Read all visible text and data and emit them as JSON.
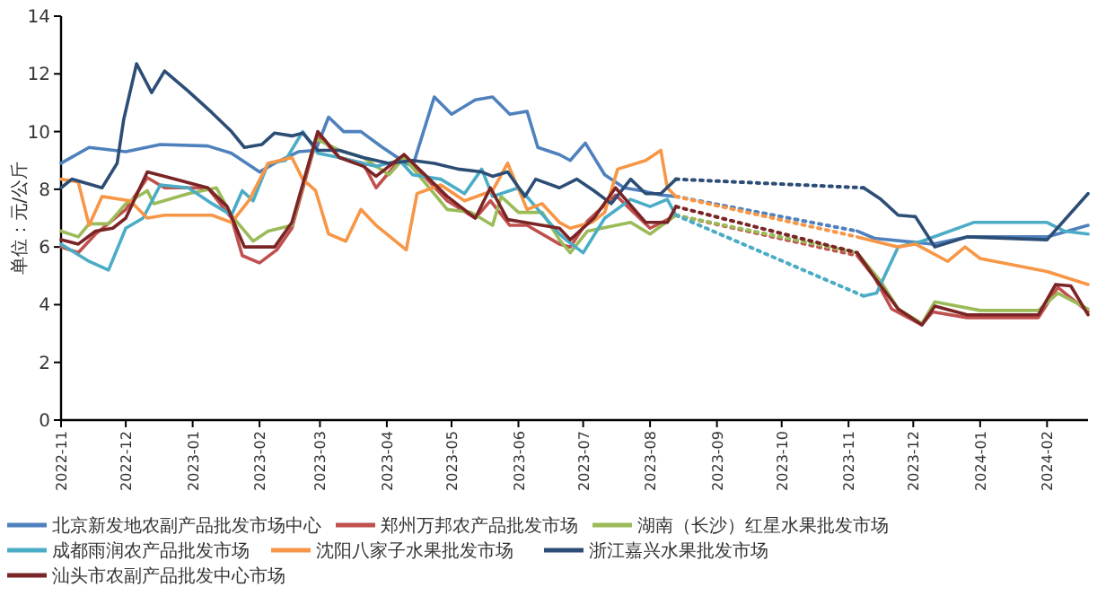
{
  "chart_data": {
    "type": "line",
    "ylabel": "单位：元/公斤",
    "legend": "bottom",
    "xlim": [
      "2022-11-01",
      "2024-02-20"
    ],
    "xticks": [
      "2022-11",
      "2022-12",
      "2023-01",
      "2023-02",
      "2023-03",
      "2023-04",
      "2023-05",
      "2023-06",
      "2023-07",
      "2023-08",
      "2023-09",
      "2023-10",
      "2023-11",
      "2023-12",
      "2024-01",
      "2024-02"
    ],
    "ylim": [
      0,
      14
    ],
    "yticks": [
      0,
      2,
      4,
      6,
      8,
      10,
      12,
      14
    ],
    "series": [
      {
        "name": "北京新发地农副产品批发市场中心",
        "color": "#4f81bd",
        "x": [
          "2022-11-01",
          "2022-11-14",
          "2022-12-01",
          "2022-12-17",
          "2023-01-08",
          "2023-01-19",
          "2023-02-01",
          "2023-02-08",
          "2023-02-19",
          "2023-02-27",
          "2023-03-05",
          "2023-03-12",
          "2023-03-20",
          "2023-03-30",
          "2023-04-10",
          "2023-04-13",
          "2023-04-23",
          "2023-05-01",
          "2023-05-12",
          "2023-05-20",
          "2023-05-28",
          "2023-06-05",
          "2023-06-10",
          "2023-06-20",
          "2023-06-25",
          "2023-07-02",
          "2023-07-11",
          "2023-07-20",
          "2023-07-28",
          "2023-08-06",
          "2023-08-13"
        ],
        "values": [
          8.9,
          9.45,
          9.3,
          9.55,
          9.5,
          9.25,
          8.6,
          8.9,
          9.3,
          9.35,
          10.5,
          10.0,
          10.0,
          9.45,
          8.9,
          8.8,
          11.2,
          10.6,
          11.1,
          11.2,
          10.6,
          10.7,
          9.45,
          9.2,
          9.0,
          9.6,
          8.5,
          8.05,
          7.95,
          7.8,
          7.75
        ]
      },
      {
        "color": "#4f81bd",
        "line_style": "dotted",
        "x": [
          "2023-08-13",
          "2023-11-05"
        ],
        "values": [
          7.75,
          6.55
        ]
      },
      {
        "color": "#4f81bd",
        "x": [
          "2023-11-05",
          "2023-11-13",
          "2023-12-10",
          "2023-12-26",
          "2024-02-01",
          "2024-02-20"
        ],
        "values": [
          6.55,
          6.3,
          6.1,
          6.35,
          6.35,
          6.75
        ]
      },
      {
        "name": "郑州万邦农产品批发市场",
        "color": "#c0504d",
        "x": [
          "2022-11-01",
          "2022-11-09",
          "2022-11-17",
          "2022-12-01",
          "2022-12-11",
          "2022-12-19",
          "2023-01-08",
          "2023-01-19",
          "2023-01-24",
          "2023-02-01",
          "2023-02-09",
          "2023-02-16",
          "2023-02-28",
          "2023-03-10",
          "2023-03-21",
          "2023-03-27",
          "2023-04-09",
          "2023-04-29",
          "2023-05-12",
          "2023-05-19",
          "2023-05-28",
          "2023-06-05",
          "2023-06-20",
          "2023-06-25",
          "2023-07-03",
          "2023-07-16",
          "2023-08-01",
          "2023-08-13"
        ],
        "values": [
          6.0,
          5.8,
          6.45,
          7.3,
          8.4,
          8.05,
          8.05,
          7.0,
          5.7,
          5.45,
          5.9,
          6.65,
          9.9,
          9.1,
          8.9,
          8.05,
          9.2,
          7.6,
          7.0,
          7.6,
          6.75,
          6.75,
          6.1,
          6.0,
          6.9,
          7.8,
          6.65,
          7.1
        ]
      },
      {
        "color": "#c0504d",
        "line_style": "dotted",
        "x": [
          "2023-08-13",
          "2023-11-05"
        ],
        "values": [
          7.1,
          5.7
        ]
      },
      {
        "color": "#c0504d",
        "x": [
          "2023-11-05",
          "2023-11-13",
          "2023-11-21",
          "2023-12-05",
          "2023-12-10",
          "2023-12-26",
          "2024-01-28",
          "2024-02-06",
          "2024-02-20"
        ],
        "values": [
          5.7,
          4.95,
          3.85,
          3.3,
          3.75,
          3.55,
          3.55,
          4.6,
          3.75
        ]
      },
      {
        "name": "湖南（长沙）红星水果批发市场",
        "color": "#9bbb59",
        "x": [
          "2022-11-01",
          "2022-11-09",
          "2022-11-14",
          "2022-11-23",
          "2022-12-01",
          "2022-12-11",
          "2022-12-14",
          "2022-12-30",
          "2023-01-12",
          "2023-01-19",
          "2023-01-29",
          "2023-02-05",
          "2023-02-16",
          "2023-02-27",
          "2023-03-10",
          "2023-03-21",
          "2023-04-02",
          "2023-04-09",
          "2023-04-29",
          "2023-05-10",
          "2023-05-20",
          "2023-05-24",
          "2023-06-01",
          "2023-06-12",
          "2023-06-20",
          "2023-06-25",
          "2023-07-03",
          "2023-07-23",
          "2023-08-01",
          "2023-08-13"
        ],
        "values": [
          6.55,
          6.35,
          6.8,
          6.8,
          7.5,
          7.95,
          7.5,
          7.85,
          8.05,
          7.1,
          6.2,
          6.55,
          6.75,
          9.75,
          9.35,
          9.1,
          8.5,
          9.1,
          7.3,
          7.2,
          6.75,
          7.75,
          7.2,
          7.2,
          6.25,
          5.8,
          6.55,
          6.85,
          6.45,
          7.1
        ]
      },
      {
        "color": "#9bbb59",
        "line_style": "dotted",
        "x": [
          "2023-08-13",
          "2023-11-05"
        ],
        "values": [
          7.1,
          5.8
        ]
      },
      {
        "color": "#9bbb59",
        "x": [
          "2023-11-05",
          "2023-11-16",
          "2023-11-24",
          "2023-12-05",
          "2023-12-11",
          "2024-01-01",
          "2024-01-28",
          "2024-02-06",
          "2024-02-15",
          "2024-02-20"
        ],
        "values": [
          5.8,
          4.8,
          3.85,
          3.35,
          4.1,
          3.8,
          3.8,
          4.4,
          4.05,
          3.85
        ]
      },
      {
        "name": "成都雨润农产品批发市场",
        "color": "#4bacc6",
        "x": [
          "2022-11-01",
          "2022-11-14",
          "2022-11-23",
          "2022-12-01",
          "2022-12-09",
          "2022-12-17",
          "2022-12-30",
          "2023-01-10",
          "2023-01-19",
          "2023-01-24",
          "2023-01-29",
          "2023-02-05",
          "2023-02-13",
          "2023-02-21",
          "2023-02-28",
          "2023-03-10",
          "2023-03-21",
          "2023-03-27",
          "2023-04-07",
          "2023-04-13",
          "2023-04-26",
          "2023-05-07",
          "2023-05-15",
          "2023-05-20",
          "2023-06-01",
          "2023-06-06",
          "2023-06-20",
          "2023-06-23",
          "2023-07-01",
          "2023-07-11",
          "2023-07-23",
          "2023-08-01",
          "2023-08-09",
          "2023-08-13"
        ],
        "values": [
          6.1,
          5.5,
          5.2,
          6.65,
          7.0,
          8.15,
          8.05,
          7.5,
          7.1,
          7.95,
          7.6,
          8.9,
          9.0,
          10.0,
          9.25,
          9.1,
          8.9,
          8.8,
          9.0,
          8.5,
          8.35,
          7.85,
          8.7,
          7.75,
          8.05,
          7.65,
          6.45,
          6.25,
          5.8,
          7.0,
          7.65,
          7.4,
          7.65,
          7.1
        ]
      },
      {
        "color": "#4bacc6",
        "line_style": "dotted",
        "x": [
          "2023-08-13",
          "2023-11-08"
        ],
        "values": [
          7.1,
          4.3
        ]
      },
      {
        "color": "#4bacc6",
        "x": [
          "2023-11-08",
          "2023-11-14",
          "2023-11-24",
          "2023-12-05",
          "2023-12-29",
          "2024-02-01",
          "2024-02-09",
          "2024-02-20"
        ],
        "values": [
          4.3,
          4.4,
          6.0,
          6.2,
          6.85,
          6.85,
          6.55,
          6.45
        ]
      },
      {
        "name": "沈阳八家子水果批发市场",
        "color": "#f79646",
        "x": [
          "2022-11-01",
          "2022-11-09",
          "2022-11-14",
          "2022-11-20",
          "2022-12-03",
          "2022-12-11",
          "2022-12-19",
          "2023-01-10",
          "2023-01-19",
          "2023-01-27",
          "2023-02-05",
          "2023-02-16",
          "2023-02-21",
          "2023-02-27",
          "2023-03-05",
          "2023-03-13",
          "2023-03-20",
          "2023-03-27",
          "2023-04-10",
          "2023-04-15",
          "2023-04-26",
          "2023-05-07",
          "2023-05-20",
          "2023-05-27",
          "2023-06-05",
          "2023-06-12",
          "2023-06-20",
          "2023-06-25",
          "2023-07-05",
          "2023-07-11",
          "2023-07-17",
          "2023-07-30",
          "2023-08-06",
          "2023-08-09",
          "2023-08-13"
        ],
        "values": [
          8.35,
          8.25,
          6.75,
          7.75,
          7.6,
          7.0,
          7.1,
          7.1,
          6.85,
          7.6,
          8.9,
          9.1,
          8.35,
          7.95,
          6.45,
          6.2,
          7.3,
          6.75,
          5.9,
          7.85,
          8.15,
          7.6,
          7.95,
          8.9,
          7.3,
          7.5,
          6.85,
          6.65,
          6.85,
          7.2,
          8.7,
          9.0,
          9.35,
          8.05,
          7.75
        ]
      },
      {
        "color": "#f79646",
        "line_style": "dotted",
        "x": [
          "2023-08-13",
          "2023-11-05"
        ],
        "values": [
          7.75,
          6.35
        ]
      },
      {
        "color": "#f79646",
        "x": [
          "2023-11-05",
          "2023-11-24",
          "2023-12-02",
          "2023-12-17",
          "2023-12-25",
          "2024-01-01",
          "2024-02-01",
          "2024-02-20"
        ],
        "values": [
          6.35,
          6.0,
          6.1,
          5.5,
          6.0,
          5.6,
          5.15,
          4.7
        ]
      },
      {
        "name": "浙江嘉兴水果批发市场",
        "color": "#2c4d75",
        "x": [
          "2022-11-01",
          "2022-11-06",
          "2022-11-20",
          "2022-11-27",
          "2022-11-30",
          "2022-12-06",
          "2022-12-13",
          "2022-12-19",
          "2022-12-30",
          "2023-01-10",
          "2023-01-19",
          "2023-01-25",
          "2023-02-02",
          "2023-02-08",
          "2023-02-16",
          "2023-02-21",
          "2023-02-28",
          "2023-03-10",
          "2023-03-21",
          "2023-04-02",
          "2023-04-13",
          "2023-04-23",
          "2023-05-04",
          "2023-05-15",
          "2023-05-20",
          "2023-05-27",
          "2023-06-04",
          "2023-06-09",
          "2023-06-20",
          "2023-06-28",
          "2023-07-06",
          "2023-07-14",
          "2023-07-23",
          "2023-07-30",
          "2023-08-06",
          "2023-08-13"
        ],
        "values": [
          8.05,
          8.35,
          8.05,
          8.9,
          10.4,
          12.35,
          11.35,
          12.1,
          11.4,
          10.65,
          10.0,
          9.45,
          9.55,
          9.95,
          9.85,
          9.95,
          9.35,
          9.35,
          9.1,
          8.9,
          9.0,
          8.9,
          8.7,
          8.6,
          8.45,
          8.6,
          7.75,
          8.35,
          8.05,
          8.35,
          7.95,
          7.5,
          8.35,
          7.85,
          7.85,
          8.35
        ]
      },
      {
        "color": "#2c4d75",
        "line_style": "dotted",
        "x": [
          "2023-08-13",
          "2023-11-08"
        ],
        "values": [
          8.35,
          8.05
        ]
      },
      {
        "color": "#2c4d75",
        "x": [
          "2023-11-08",
          "2023-11-16",
          "2023-11-24",
          "2023-12-02",
          "2023-12-11",
          "2023-12-26",
          "2024-02-01",
          "2024-02-20"
        ],
        "values": [
          8.05,
          7.65,
          7.1,
          7.05,
          6.0,
          6.35,
          6.25,
          7.85
        ]
      },
      {
        "name": "汕头市农副产品批发中心市场",
        "color": "#7b2426",
        "x": [
          "2022-11-01",
          "2022-11-09",
          "2022-11-17",
          "2022-11-25",
          "2022-12-01",
          "2022-12-11",
          "2022-12-19",
          "2023-01-08",
          "2023-01-17",
          "2023-01-25",
          "2023-02-08",
          "2023-02-16",
          "2023-02-28",
          "2023-03-10",
          "2023-03-21",
          "2023-03-27",
          "2023-04-09",
          "2023-04-29",
          "2023-05-12",
          "2023-05-19",
          "2023-05-27",
          "2023-06-04",
          "2023-06-20",
          "2023-06-25",
          "2023-07-06",
          "2023-07-16",
          "2023-07-30",
          "2023-08-09",
          "2023-08-13"
        ],
        "values": [
          6.25,
          6.1,
          6.55,
          6.65,
          7.0,
          8.6,
          8.45,
          8.05,
          7.4,
          6.0,
          6.0,
          6.85,
          10.0,
          9.1,
          8.8,
          8.45,
          9.2,
          7.75,
          7.0,
          8.05,
          6.95,
          6.85,
          6.65,
          6.25,
          7.0,
          8.05,
          6.85,
          6.85,
          7.4
        ]
      },
      {
        "color": "#7b2426",
        "line_style": "dotted",
        "x": [
          "2023-08-13",
          "2023-11-05"
        ],
        "values": [
          7.4,
          5.8
        ]
      },
      {
        "color": "#7b2426",
        "x": [
          "2023-11-05",
          "2023-11-13",
          "2023-11-24",
          "2023-12-05",
          "2023-12-11",
          "2023-12-26",
          "2024-01-28",
          "2024-02-05",
          "2024-02-12",
          "2024-02-20"
        ],
        "values": [
          5.8,
          4.95,
          3.85,
          3.3,
          3.95,
          3.65,
          3.65,
          4.7,
          4.65,
          3.65
        ]
      }
    ]
  }
}
